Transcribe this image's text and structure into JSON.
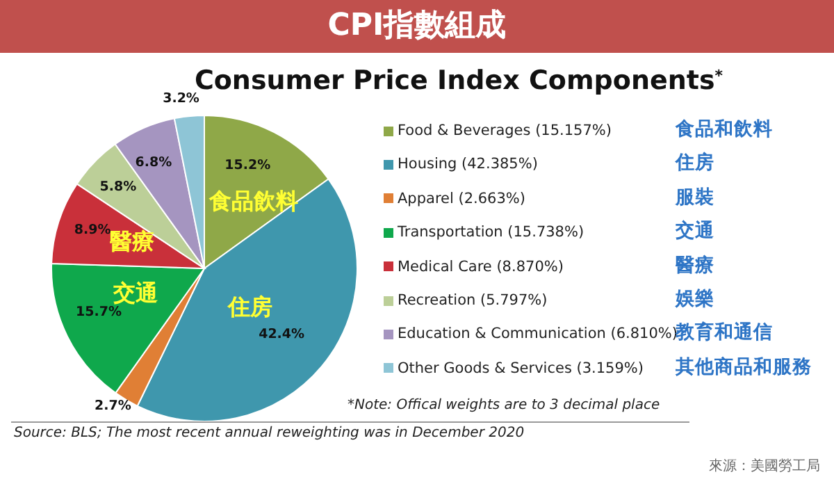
{
  "chart_data": {
    "type": "pie",
    "title": "CPI指數組成",
    "subtitle": "Consumer Price Index Components$^{*}$",
    "categories": [
      "Food & Beverages (15.157%)",
      "Housing (42.385%)",
      "Apparel (2.663%)",
      "Transportation (15.738%)",
      "Medical Care (8.870%)",
      "Recreation (5.797%)",
      "Education & Communication (6.810%)",
      "Other Goods & Services (3.159%)"
    ],
    "values": [
      15.157,
      42.385,
      2.663,
      15.738,
      8.87,
      5.797,
      6.81,
      3.159
    ],
    "colors": [
      "#8fa848",
      "#3f97ad",
      "#e07f35",
      "#0fa84c",
      "#c9303a",
      "#bccf98",
      "#a595c0",
      "#8ec5d6"
    ],
    "value_labels": [
      "15.2%",
      "42.4%",
      "2.7%",
      "15.7%",
      "8.9%",
      "5.8%",
      "6.8%",
      "3.2%"
    ],
    "legend": "right",
    "annotations": [
      "*Note: Offical weights are to 3 decimal place",
      "Source: BLS; The most recent annual reweighting was in December 2020",
      "來源：美國勞工局",
      "食品和飲料",
      "住房",
      "服裝",
      "交通",
      "醫療",
      "娛樂",
      "教育和通信",
      "其他商品和服務",
      {
        "text": "食品飲料",
        "x": "Food & Beverages (15.157%)"
      },
      {
        "text": "住房",
        "x": "Housing (42.385%)"
      },
      {
        "text": "醫療",
        "x": "Medical Care (8.870%)"
      },
      {
        "text": "交通",
        "x": "Transportation (15.738%)"
      }
    ]
  }
}
